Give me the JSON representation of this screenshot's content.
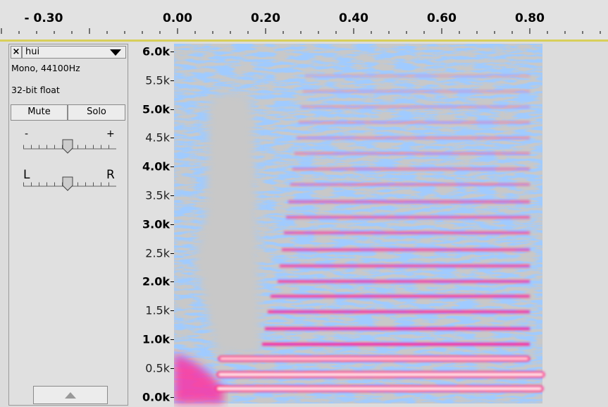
{
  "timeline": {
    "labels": [
      "- 0.30",
      "0.00",
      "0.20",
      "0.40",
      "0.60",
      "0.80"
    ]
  },
  "track": {
    "close": "×",
    "name": "hui",
    "info": [
      "Mono, 44100Hz",
      "32-bit float"
    ],
    "buttons": [
      "Mute",
      "Solo"
    ],
    "gain_labels": [
      "-",
      "+"
    ],
    "pan_labels": [
      "L",
      "R"
    ]
  },
  "frequency_axis": {
    "labels": [
      "6.0k",
      "5.5k",
      "5.0k",
      "4.5k",
      "4.0k",
      "3.5k",
      "3.0k",
      "2.5k",
      "2.0k",
      "1.5k",
      "1.0k",
      "0.5k",
      "0.0k"
    ]
  }
}
